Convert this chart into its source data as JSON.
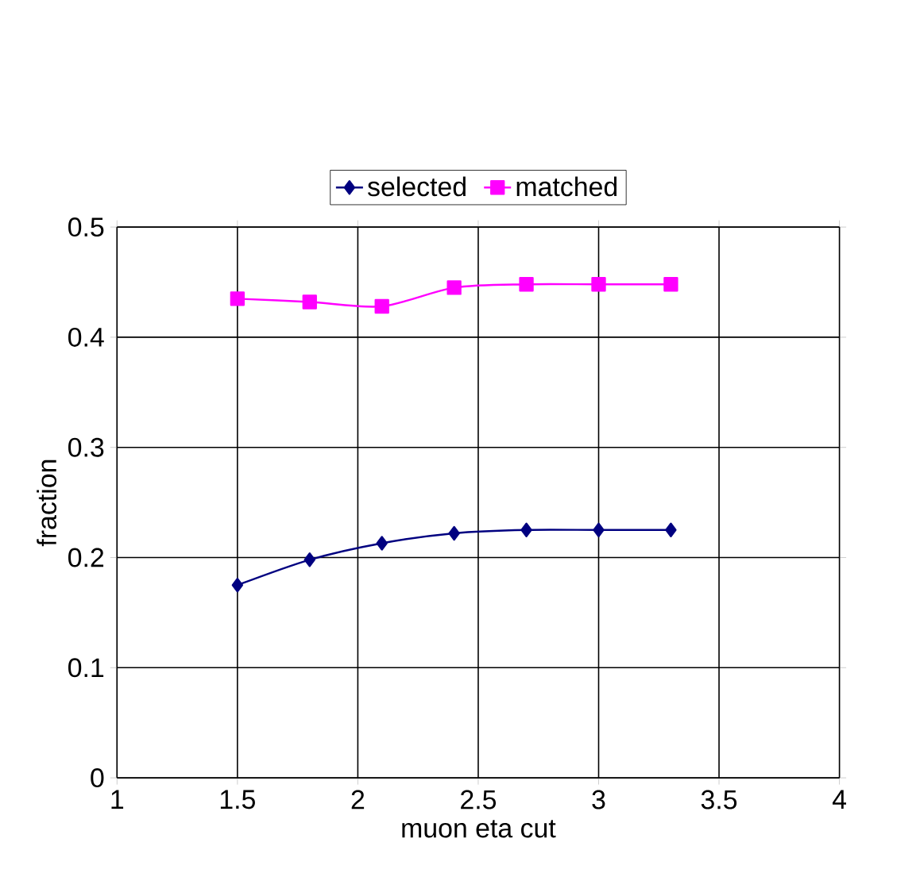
{
  "chart_data": {
    "type": "line",
    "xlabel": "muon eta cut",
    "ylabel": "fraction",
    "x": [
      1.5,
      1.8,
      2.1,
      2.4,
      2.7,
      3.0,
      3.3
    ],
    "series": [
      {
        "name": "selected",
        "color": "#000080",
        "marker": "diamond",
        "values": [
          0.175,
          0.198,
          0.213,
          0.222,
          0.225,
          0.225,
          0.225
        ]
      },
      {
        "name": "matched",
        "color": "#ff00ff",
        "marker": "square",
        "values": [
          0.435,
          0.432,
          0.428,
          0.445,
          0.448,
          0.448,
          0.448
        ]
      }
    ],
    "xlim": [
      1,
      4
    ],
    "xticks": [
      1,
      1.5,
      2,
      2.5,
      3,
      3.5,
      4
    ],
    "ylim": [
      0,
      0.5
    ],
    "yticks": [
      0,
      0.1,
      0.2,
      0.3,
      0.4,
      0.5
    ],
    "grid": true,
    "legend": "top",
    "line_style": "solid"
  }
}
